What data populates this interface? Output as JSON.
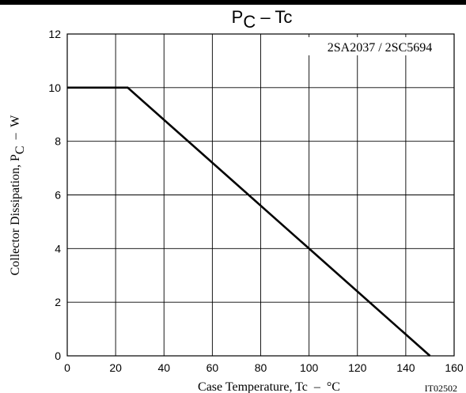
{
  "chart_data": {
    "type": "line",
    "title": {
      "main": "P",
      "subscript": "C",
      "rest": " – Tc"
    },
    "device_label": "2SA2037 / 2SC5694",
    "xlabel": "Case Temperature, Tc  –  °C",
    "ylabel": {
      "main": "Collector Dissipation, P",
      "subscript": "C",
      "rest": "  –  W"
    },
    "figure_code": "IT02502",
    "xlim": [
      0,
      160
    ],
    "ylim": [
      0,
      12
    ],
    "x_ticks": [
      0,
      20,
      40,
      60,
      80,
      100,
      120,
      140,
      160
    ],
    "y_ticks": [
      0,
      2,
      4,
      6,
      8,
      10,
      12
    ],
    "x_tick_labels": [
      "0",
      "20",
      "40",
      "60",
      "80",
      "100",
      "120",
      "140",
      "160"
    ],
    "y_tick_labels": [
      "0",
      "2",
      "4",
      "6",
      "8",
      "10",
      "12"
    ],
    "grid": true,
    "series": [
      {
        "x": [
          0,
          25,
          150
        ],
        "y": [
          10,
          10,
          0
        ]
      }
    ]
  }
}
